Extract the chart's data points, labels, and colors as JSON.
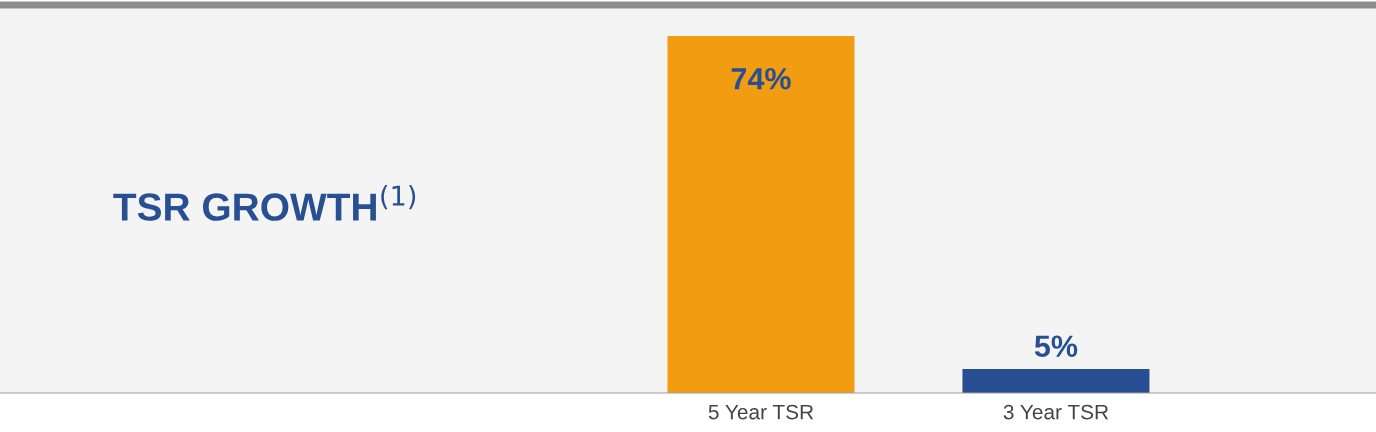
{
  "chart_data": {
    "type": "bar",
    "title": "TSR GROWTH$^{(1)}$",
    "categories": [
      "5 Year TSR",
      "3 Year TSR"
    ],
    "values": [
      74,
      5
    ],
    "colors": [
      "#f29c11",
      "#284f92"
    ],
    "value_labels": [
      "74%",
      "5%"
    ],
    "grid": false,
    "legend": false
  }
}
